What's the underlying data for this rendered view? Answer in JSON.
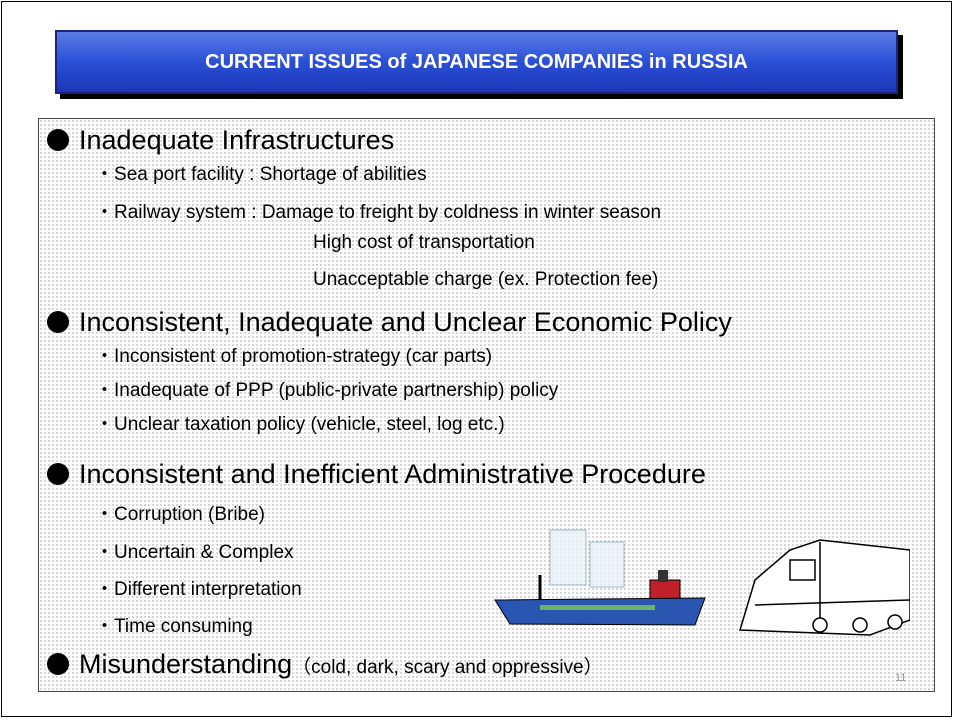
{
  "slide": {
    "title": "CURRENT ISSUES of JAPANESE COMPANIES in RUSSIA",
    "sections": [
      {
        "heading": "Inadequate Infrastructures",
        "items": [
          "Sea port facility : Shortage of abilities",
          "Railway system : Damage to freight by coldness in winter season"
        ],
        "continuation": [
          "High cost of transportation",
          "Unacceptable charge (ex. Protection fee)"
        ]
      },
      {
        "heading": "Inconsistent, Inadequate and Unclear Economic Policy",
        "items": [
          "Inconsistent of promotion-strategy (car parts)",
          "Inadequate of PPP (public-private partnership) policy",
          "Unclear taxation policy (vehicle, steel, log etc.)"
        ]
      },
      {
        "heading": "Inconsistent and Inefficient Administrative Procedure",
        "items": [
          "Corruption (Bribe)",
          "Uncertain & Complex",
          "Different interpretation",
          "Time consuming"
        ]
      },
      {
        "heading": "Misunderstanding",
        "note": "（cold, dark, scary and oppressive）",
        "items": []
      }
    ],
    "page_number": "11"
  }
}
